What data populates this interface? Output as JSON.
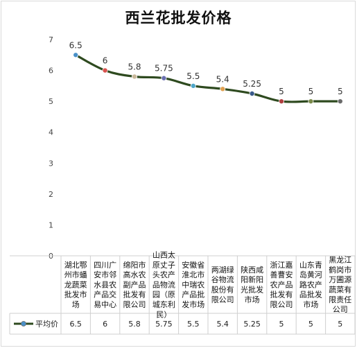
{
  "chart_data": {
    "type": "line",
    "title": "西兰花批发价格",
    "xlabel": "",
    "ylabel": "",
    "ylim": [
      0,
      7
    ],
    "yticks": [
      0,
      1,
      2,
      3,
      4,
      5,
      6,
      7
    ],
    "grid": false,
    "legend": "bottom-left (data table)",
    "series": [
      {
        "name": "平均价",
        "color": "#2e4a1f",
        "marker_color": "#4a90c8",
        "values": [
          6.5,
          6,
          5.8,
          5.75,
          5.5,
          5.4,
          5.25,
          5,
          5,
          5
        ],
        "labels": [
          "6.5",
          "6",
          "5.8",
          "5.75",
          "5.5",
          "5.4",
          "5.25",
          "5",
          "5",
          "5"
        ]
      }
    ],
    "categories": [
      "湖北鄂州市蟠龙蔬菜批发市场",
      "四川广安市邻水县农产品交易中心",
      "绵阳市高水农副产品批发有限公司",
      "山西太原丈子头农产品物流园（原城东利民）",
      "安徽省淮北市中瑞农产品批发市场",
      "两湖绿谷物流股份有限公司",
      "陕西咸阳新阳光批发市场",
      "浙江嘉善曹安农产品批发有限公司",
      "山东青岛黄河路农产品批发市场",
      "黑龙江鹤岗市万圃源蔬菜有限责任公司"
    ],
    "category_lines": [
      [
        "湖北鄂",
        "州市蟠",
        "龙蔬菜",
        "批发市",
        "场"
      ],
      [
        "四川广",
        "安市邻",
        "水县农",
        "产品交",
        "易中心"
      ],
      [
        "绵阳市",
        "高水农",
        "副产品",
        "批发有",
        "限公司"
      ],
      [
        "山西太",
        "原丈子",
        "头农产",
        "品物流",
        "园（原",
        "城东利",
        "民）"
      ],
      [
        "安徽省",
        "淮北市",
        "中瑞农",
        "产品批",
        "发市场"
      ],
      [
        "两湖绿",
        "谷物流",
        "股份有",
        "限公司"
      ],
      [
        "陕西咸",
        "阳新阳",
        "光批发",
        "市场"
      ],
      [
        "浙江嘉",
        "善曹安",
        "农产品",
        "批发有",
        "限公司"
      ],
      [
        "山东青",
        "岛黄河",
        "路农产",
        "品批发",
        "市场"
      ],
      [
        "黑龙江",
        "鹤岗市",
        "万圃源",
        "蔬菜有",
        "限责任",
        "公司"
      ]
    ],
    "table_values": [
      "6.5",
      "6",
      "5.8",
      "5.75",
      "5.5",
      "5.4",
      "5.25",
      "5",
      "5",
      "5"
    ]
  }
}
